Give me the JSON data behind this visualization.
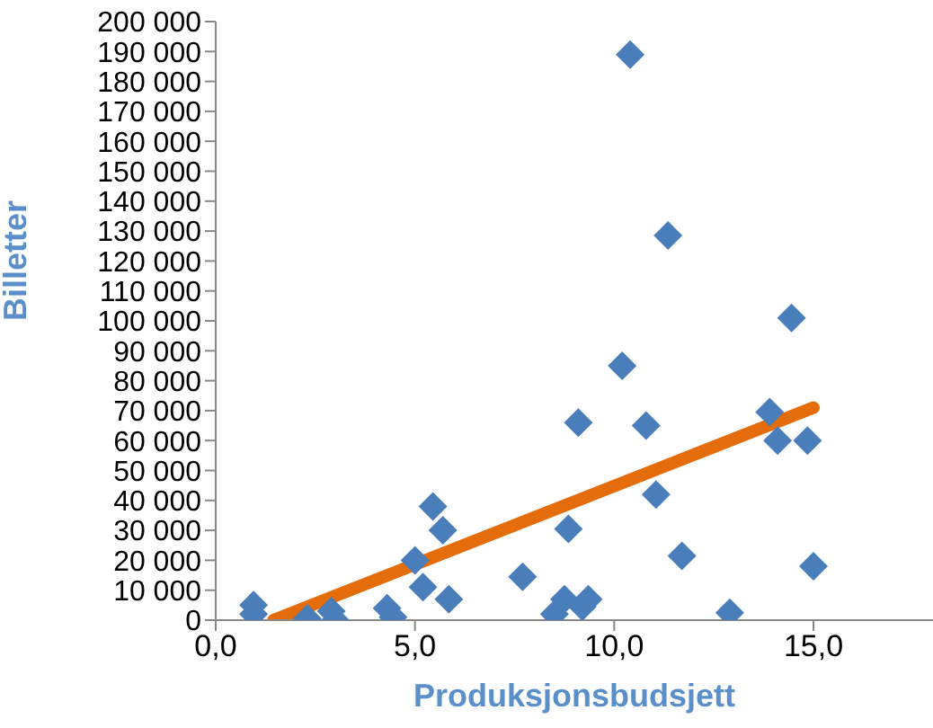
{
  "chart_data": {
    "type": "scatter",
    "xlabel": "Produksjonsbudsjett",
    "ylabel": "Billetter",
    "xlim": [
      0,
      18
    ],
    "xticks": [
      {
        "value": 0,
        "label": "0,0"
      },
      {
        "value": 5,
        "label": "5,0"
      },
      {
        "value": 10,
        "label": "10,0"
      },
      {
        "value": 15,
        "label": "15,0"
      }
    ],
    "ylim": [
      0,
      200000
    ],
    "yticks": [
      {
        "value": 0,
        "label": "0"
      },
      {
        "value": 10000,
        "label": "10 000"
      },
      {
        "value": 20000,
        "label": "20 000"
      },
      {
        "value": 30000,
        "label": "30 000"
      },
      {
        "value": 40000,
        "label": "40 000"
      },
      {
        "value": 50000,
        "label": "50 000"
      },
      {
        "value": 60000,
        "label": "60 000"
      },
      {
        "value": 70000,
        "label": "70 000"
      },
      {
        "value": 80000,
        "label": "80 000"
      },
      {
        "value": 90000,
        "label": "90 000"
      },
      {
        "value": 100000,
        "label": "100 000"
      },
      {
        "value": 110000,
        "label": "110 000"
      },
      {
        "value": 120000,
        "label": "120 000"
      },
      {
        "value": 130000,
        "label": "130 000"
      },
      {
        "value": 140000,
        "label": "140 000"
      },
      {
        "value": 150000,
        "label": "150 000"
      },
      {
        "value": 160000,
        "label": "160 000"
      },
      {
        "value": 170000,
        "label": "170 000"
      },
      {
        "value": 180000,
        "label": "180 000"
      },
      {
        "value": 190000,
        "label": "190 000"
      },
      {
        "value": 200000,
        "label": "200 000"
      }
    ],
    "grid": false,
    "legend": false,
    "marker": "diamond",
    "series": [
      {
        "color": "#4a7ebb",
        "x": [
          0.95,
          0.95,
          2.3,
          2.9,
          3.0,
          4.3,
          4.45,
          5.0,
          5.2,
          5.45,
          5.7,
          5.85,
          7.7,
          8.5,
          8.75,
          8.85,
          9.1,
          9.2,
          9.35,
          10.2,
          10.4,
          10.8,
          11.05,
          11.35,
          11.7,
          12.9,
          13.9,
          14.1,
          14.45,
          14.85,
          15.0
        ],
        "values": [
          5000,
          2000,
          500,
          3000,
          0,
          4000,
          1000,
          20000,
          11000,
          38000,
          30000,
          7000,
          14500,
          2000,
          7000,
          30500,
          66000,
          4500,
          7000,
          85000,
          189000,
          65000,
          42000,
          128500,
          21500,
          2500,
          69500,
          60000,
          101000,
          60000,
          18000
        ]
      },
      {
        "type": "line",
        "color": "#e46c0a",
        "marker": "none",
        "x": [
          1.45,
          15.0
        ],
        "values": [
          0,
          71000
        ]
      }
    ]
  }
}
